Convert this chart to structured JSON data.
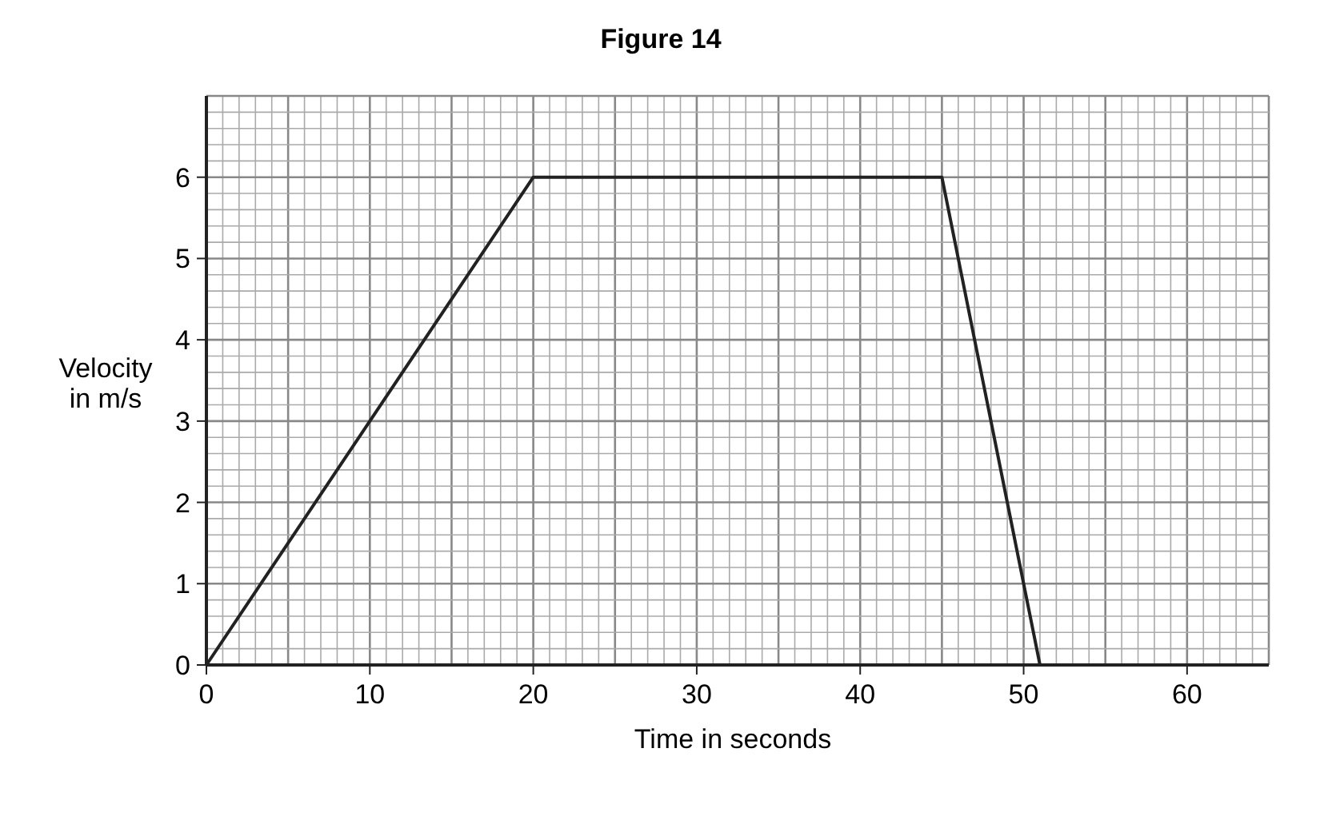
{
  "chart_data": {
    "type": "line",
    "title": "Figure 14",
    "xlabel": "Time in seconds",
    "ylabel": "Velocity\nin m/s",
    "x": [
      0,
      20,
      45,
      51
    ],
    "series": [
      {
        "color": "#222222",
        "values": [
          0,
          6,
          6,
          0
        ]
      }
    ],
    "xlim": [
      0,
      65
    ],
    "xticks": [
      0,
      10,
      20,
      30,
      40,
      50,
      60
    ],
    "ylim": [
      0,
      7
    ],
    "yticks": [
      0,
      1,
      2,
      3,
      4,
      5,
      6
    ],
    "grid": true,
    "marker": "none",
    "line_style": "solid"
  }
}
